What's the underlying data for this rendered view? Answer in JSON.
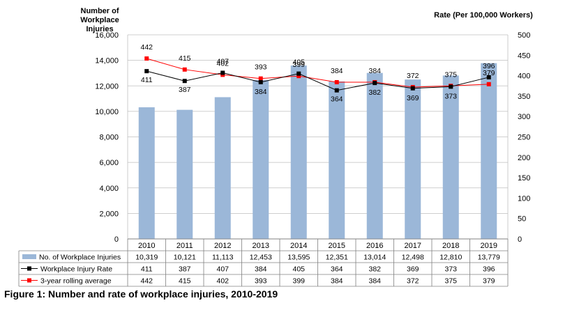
{
  "chart_data": {
    "type": "bar",
    "categories": [
      "2010",
      "2011",
      "2012",
      "2013",
      "2014",
      "2015",
      "2016",
      "2017",
      "2018",
      "2019"
    ],
    "series": [
      {
        "name": "No. of Workplace Injuries",
        "type": "bar",
        "axis": "left",
        "values": [
          10319,
          10121,
          11113,
          12453,
          13595,
          12351,
          13014,
          12498,
          12810,
          13779
        ],
        "labels": [
          "10,319",
          "10,121",
          "11,113",
          "12,453",
          "13,595",
          "12,351",
          "13,014",
          "12,498",
          "12,810",
          "13,779"
        ],
        "color": "#9bb7d8"
      },
      {
        "name": "Workplace Injury Rate",
        "type": "line",
        "axis": "right",
        "values": [
          411,
          387,
          407,
          384,
          405,
          364,
          382,
          369,
          373,
          396
        ],
        "color": "#000000"
      },
      {
        "name": "3-year rolling average",
        "type": "line",
        "axis": "right",
        "values": [
          442,
          415,
          402,
          393,
          399,
          384,
          384,
          372,
          375,
          379
        ],
        "color": "#ff0000"
      }
    ],
    "ylabel": "Number of Workplace Injuries",
    "ylabel_lines": [
      "Number of",
      "Workplace  Injuries"
    ],
    "y2label": "Rate (Per 100,000 Workers)",
    "ylim": [
      0,
      16000
    ],
    "y2lim": [
      0,
      500
    ],
    "yticks": [
      "0",
      "2,000",
      "4,000",
      "6,000",
      "8,000",
      "10,000",
      "12,000",
      "14,000",
      "16,000"
    ],
    "y2ticks": [
      "0",
      "50",
      "100",
      "150",
      "200",
      "250",
      "300",
      "350",
      "400",
      "450",
      "500"
    ],
    "grid": true,
    "legend_placement": "bottom data table",
    "caption": "Figure 1: Number and rate of workplace injuries, 2010-2019"
  }
}
